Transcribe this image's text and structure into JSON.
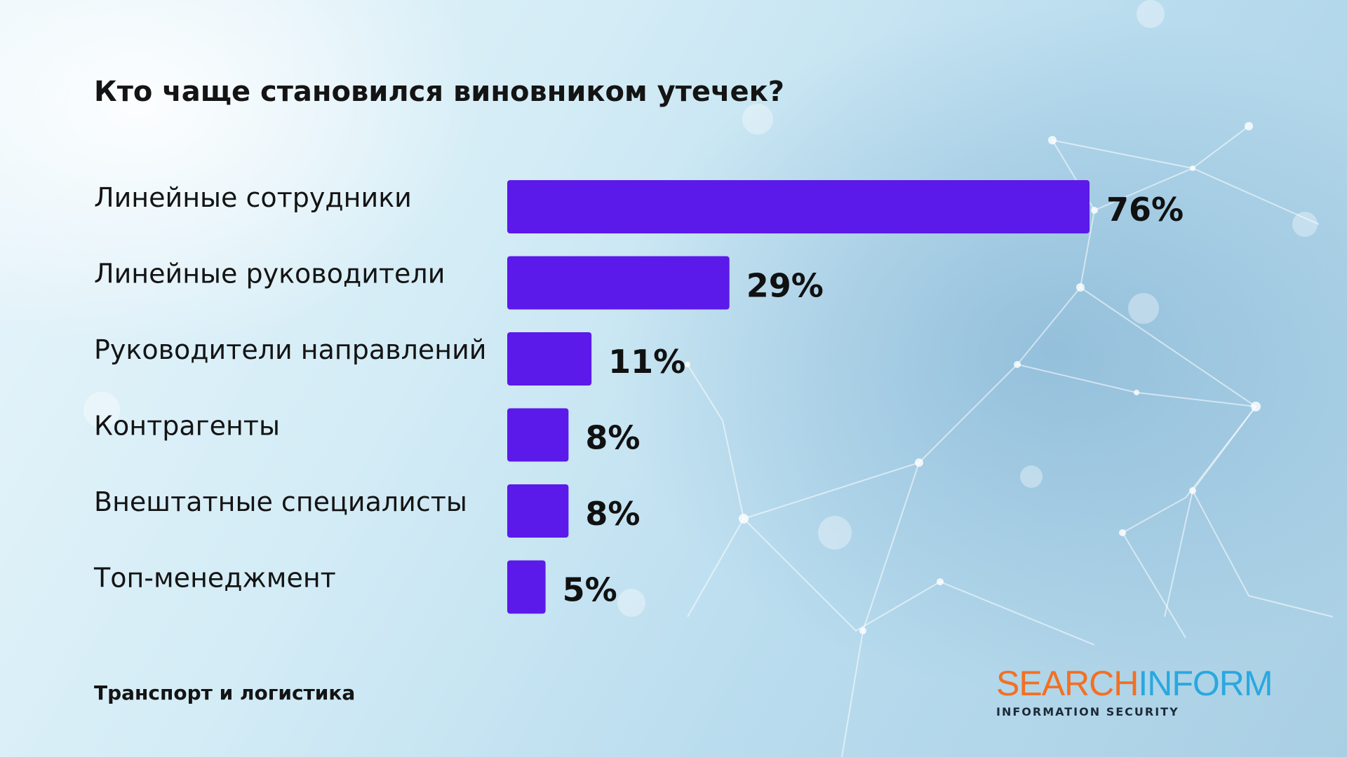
{
  "chart_data": {
    "type": "bar",
    "orientation": "horizontal",
    "title": "Кто чаще становился виновником утечек?",
    "categories": [
      "Линейные сотрудники",
      "Линейные руководители",
      "Руководители направлений",
      "Контрагенты",
      "Внештатные специалисты",
      "Топ-менеджмент"
    ],
    "values": [
      76,
      29,
      11,
      8,
      8,
      5
    ],
    "value_labels": [
      "76%",
      "29%",
      "11%",
      "8%",
      "8%",
      "5%"
    ],
    "bar_color": "#5b19ea",
    "grid": false
  },
  "footer": {
    "label": "Транспорт и логистика"
  },
  "logo": {
    "word_part1": "SEARCH",
    "word_part2": "INFORM",
    "tagline": "INFORMATION SECURITY"
  }
}
